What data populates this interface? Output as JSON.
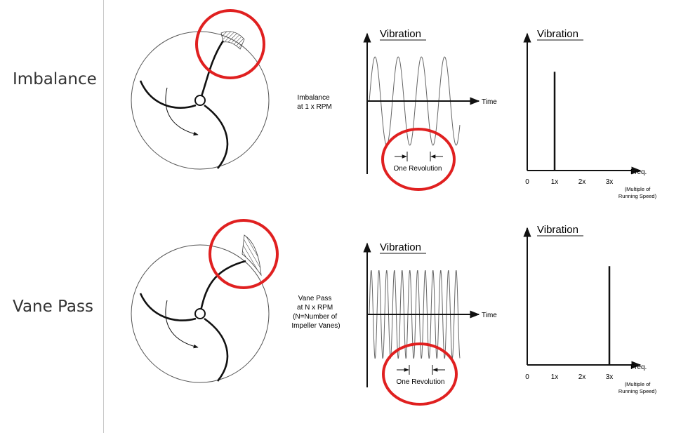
{
  "rows": [
    {
      "label": "Imbalance",
      "description": [
        "Imbalance",
        "at 1 x RPM"
      ],
      "waveform": {
        "title": "Vibration",
        "time_label": "Time",
        "revolution_label": "One Revolution",
        "cycles_per_revolution": 1
      },
      "spectrum": {
        "title": "Vibration",
        "xlabel": "Freq.",
        "xlabel_note": [
          "(Multiple of",
          "Running Speed)"
        ],
        "tick_labels": [
          "0",
          "1x",
          "2x",
          "3x"
        ],
        "peak_at": 1,
        "peak_height": 0.8
      }
    },
    {
      "label": "Vane Pass",
      "description": [
        "Vane Pass",
        "at N x RPM",
        "(N=Number of",
        "Impeller Vanes)"
      ],
      "waveform": {
        "title": "Vibration",
        "time_label": "Time",
        "revolution_label": "One Revolution",
        "cycles_per_revolution": 3
      },
      "spectrum": {
        "title": "Vibration",
        "xlabel": "Freq.",
        "xlabel_note": [
          "(Multiple of",
          "Running Speed)"
        ],
        "tick_labels": [
          "0",
          "1x",
          "2x",
          "3x"
        ],
        "peak_at": 3,
        "peak_height": 0.8
      }
    }
  ],
  "colors": {
    "highlight": "#e02020",
    "ink": "#111111",
    "wave": "#666666",
    "label": "#333333"
  }
}
